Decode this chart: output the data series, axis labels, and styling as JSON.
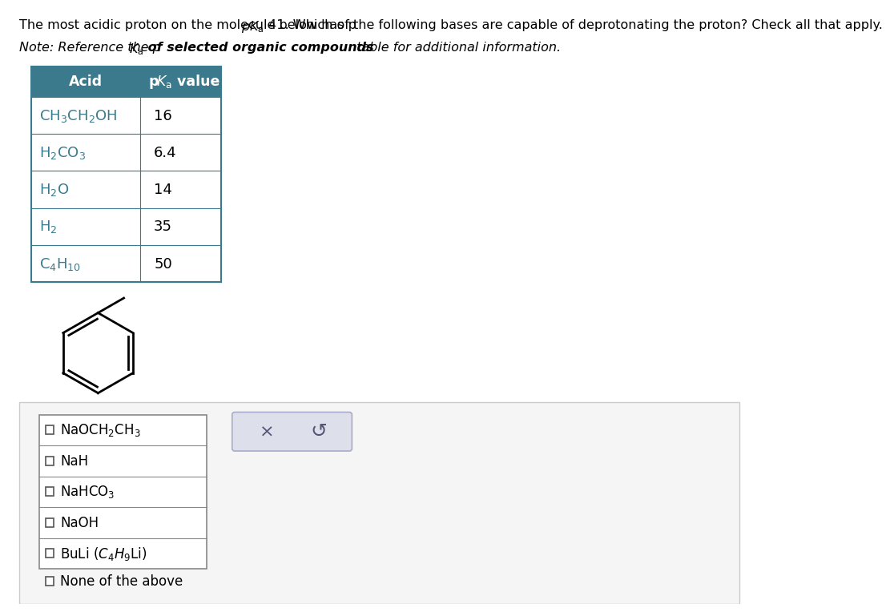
{
  "page_bg": "#ffffff",
  "table_header_color": "#3a7a8c",
  "table_border_color": "#3a7a8c",
  "table_acid_header": "Acid",
  "table_pka_header": "pK",
  "table_pka_header_sub": "a",
  "table_pka_header_rest": " value",
  "table_pkas": [
    "16",
    "6.4",
    "14",
    "35",
    "50"
  ],
  "acids_display": [
    "CH$_3$CH$_2$OH",
    "H$_2$CO$_3$",
    "H$_2$O",
    "H$_2$",
    "C$_4$H$_{10}$"
  ],
  "choices_display": [
    "NaOCH$_2$CH$_3$",
    "NaH",
    "NaHCO$_3$",
    "NaOH",
    "BuLi $(C_4H_9\\mathrm{Li})$"
  ],
  "title_pre": "The most acidic proton on the molecule below has p",
  "title_post": " 41. Which of the following bases are capable of deprotonating the proton? Check all that apply.",
  "note_pre": "Note: Reference the p",
  "note_bold": " of selected organic compounds",
  "note_post": " table for additional information.",
  "teal": "#3a7a8c"
}
